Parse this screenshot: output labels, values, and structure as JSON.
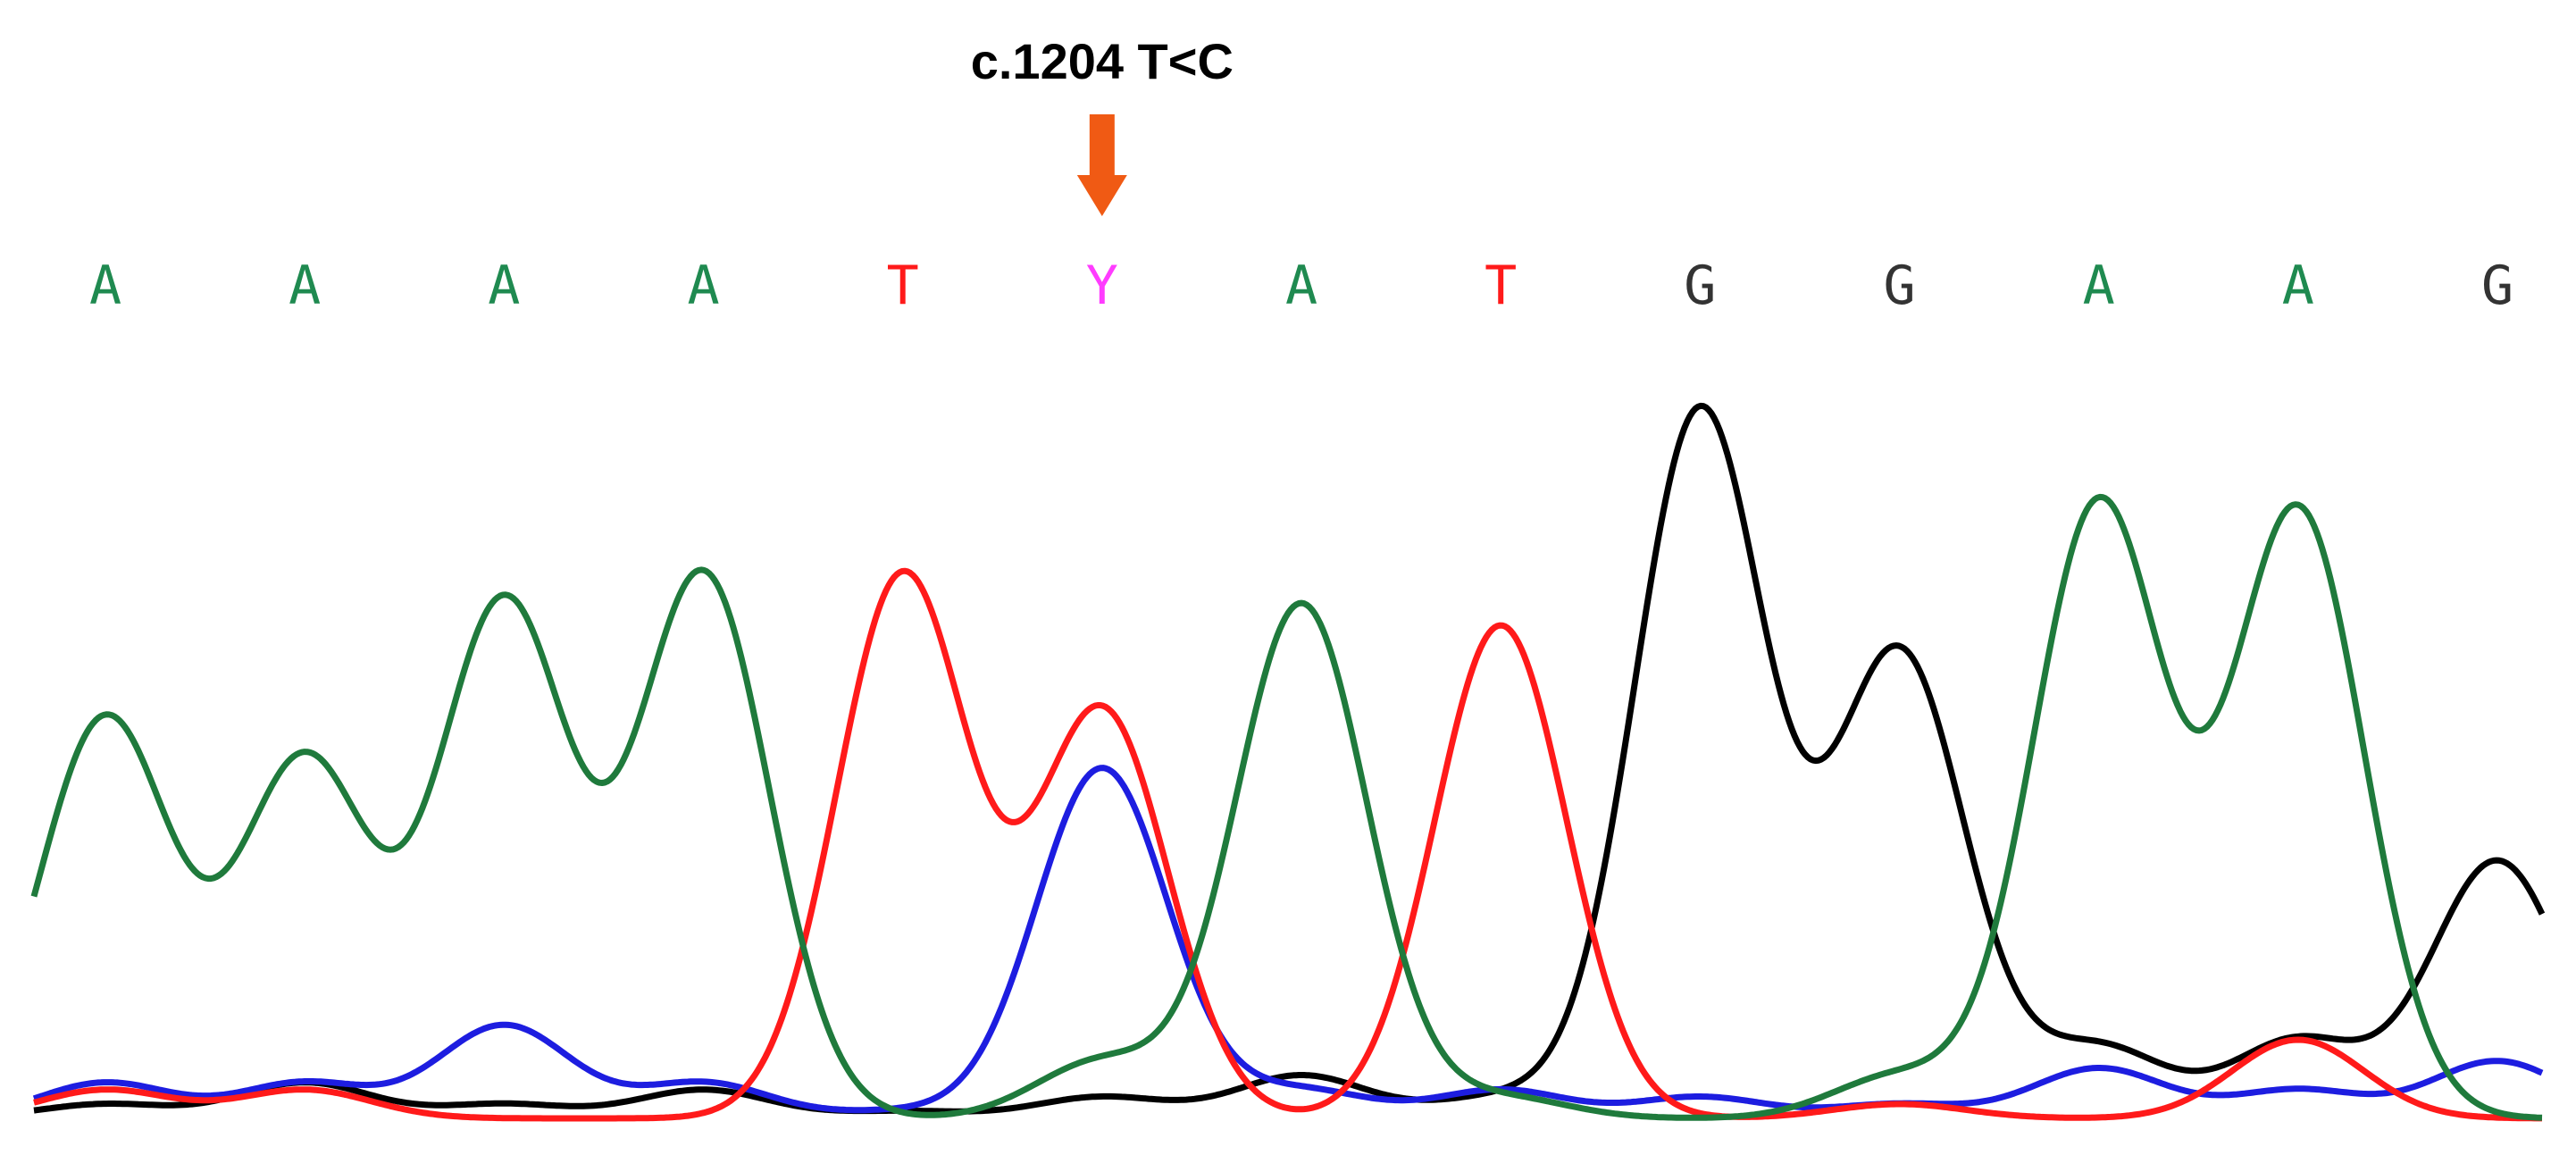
{
  "chart_data": {
    "type": "line",
    "title": "",
    "xlabel": "",
    "ylabel": "",
    "annotation": {
      "label": "c.1204 T<C",
      "position": 6,
      "marker": "arrow",
      "color": "#f05a14"
    },
    "base_calls": [
      "A",
      "A",
      "A",
      "A",
      "T",
      "Y",
      "A",
      "T",
      "G",
      "G",
      "A",
      "A",
      "G"
    ],
    "x": [
      1,
      2,
      3,
      4,
      5,
      6,
      7,
      8,
      9,
      10,
      11,
      12,
      13
    ],
    "ylim": [
      0,
      100
    ],
    "series": [
      {
        "name": "A",
        "color": "#1f7a3c",
        "values": [
          56,
          50,
          72,
          76,
          0,
          8,
          72,
          3,
          0,
          6,
          86,
          85,
          0
        ]
      },
      {
        "name": "T",
        "color": "#ff1a1a",
        "values": [
          4,
          4,
          0,
          0,
          76,
          57,
          0,
          69,
          0,
          2,
          0,
          11,
          0
        ]
      },
      {
        "name": "C",
        "color": "#1d1de0",
        "values": [
          5,
          5,
          13,
          5,
          1,
          49,
          4,
          4,
          3,
          2,
          7,
          4,
          8
        ]
      },
      {
        "name": "G",
        "color": "#000000",
        "values": [
          2,
          5,
          2,
          4,
          1,
          3,
          6,
          3,
          99,
          65,
          10,
          11,
          36
        ]
      }
    ],
    "base_colors": {
      "A": "#1f8a50",
      "T": "#ff1a1a",
      "Y": "#ff3cff",
      "G": "#333333"
    }
  }
}
